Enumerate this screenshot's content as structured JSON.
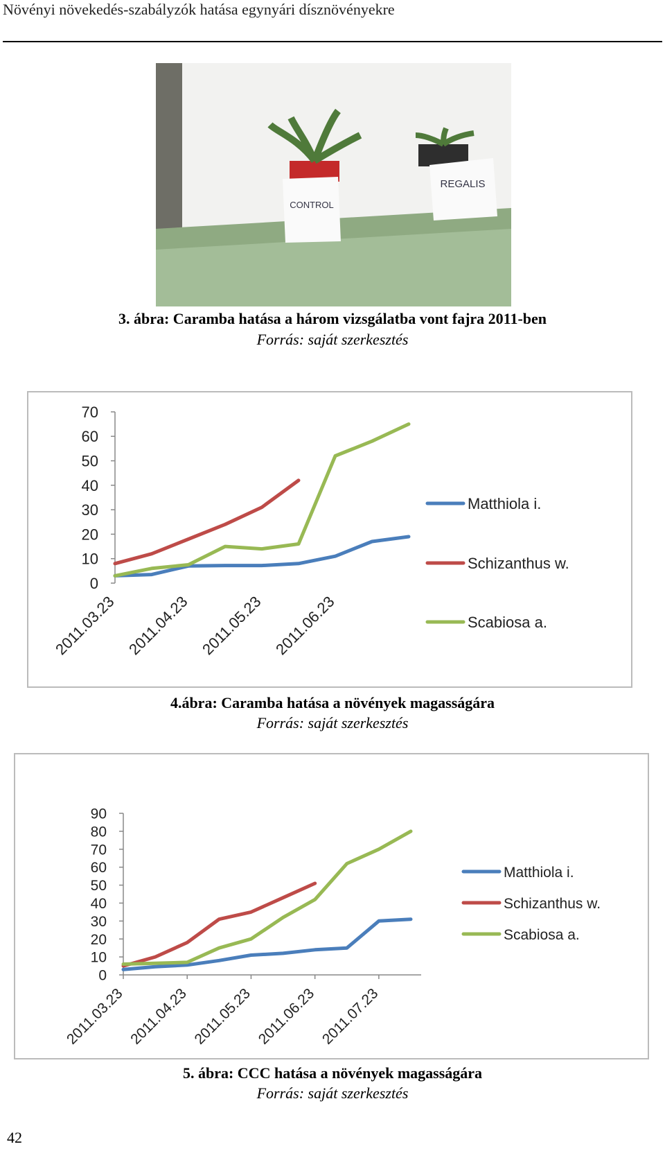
{
  "header": {
    "title": "Növényi növekedés-szabályzók hatása egynyári dísznövényekre"
  },
  "photo": {
    "labels": [
      "CONTROL",
      "REGALIS"
    ]
  },
  "figures": [
    {
      "caption": "3. ábra: Caramba hatása a három vizsgálatba vont fajra 2011-ben",
      "source": "Forrás: saját szerkesztés"
    },
    {
      "caption": "4.ábra: Caramba hatása a növények magasságára",
      "source": "Forrás: saját szerkesztés"
    },
    {
      "caption": "5. ábra: CCC hatása a növények magasságára",
      "source": "Forrás: saját szerkesztés"
    }
  ],
  "chart_data": [
    {
      "type": "line",
      "categories": [
        "2011.03.23",
        null,
        "2011.04.23",
        null,
        "2011.05.23",
        null,
        "2011.06.23",
        null,
        null
      ],
      "series": [
        {
          "name": "Matthiola i.",
          "color": "#4a7ebb",
          "values": [
            3,
            3.5,
            7,
            7.2,
            7.2,
            8,
            11,
            17,
            19
          ]
        },
        {
          "name": "Schizanthus w.",
          "color": "#be4b48",
          "values": [
            8,
            12,
            18,
            24,
            31,
            42,
            null,
            null,
            null
          ]
        },
        {
          "name": "Scabiosa a.",
          "color": "#98b954",
          "values": [
            3,
            6,
            7.5,
            15,
            14,
            16,
            52,
            58,
            65
          ]
        }
      ],
      "ylim": [
        0,
        70
      ],
      "yticks": [
        0,
        10,
        20,
        30,
        40,
        50,
        60,
        70
      ],
      "grid": false,
      "legend": "right"
    },
    {
      "type": "line",
      "categories": [
        "2011.03.23",
        null,
        "2011.04.23",
        null,
        "2011.05.23",
        null,
        "2011.06.23",
        null,
        "2011.07.23",
        null
      ],
      "series": [
        {
          "name": "Matthiola i.",
          "color": "#4a7ebb",
          "values": [
            3,
            4.5,
            5.5,
            8,
            11,
            12,
            14,
            15,
            30,
            31
          ]
        },
        {
          "name": "Schizanthus w.",
          "color": "#be4b48",
          "values": [
            5,
            10,
            18,
            31,
            35,
            43,
            51,
            null,
            null,
            null
          ]
        },
        {
          "name": "Scabiosa a.",
          "color": "#98b954",
          "values": [
            6,
            6.5,
            7,
            15,
            20,
            32,
            42,
            62,
            70,
            80
          ]
        }
      ],
      "ylim": [
        0,
        90
      ],
      "yticks": [
        0,
        10,
        20,
        30,
        40,
        50,
        60,
        70,
        80,
        90
      ],
      "grid": false,
      "legend": "right"
    }
  ],
  "page_number": "42"
}
